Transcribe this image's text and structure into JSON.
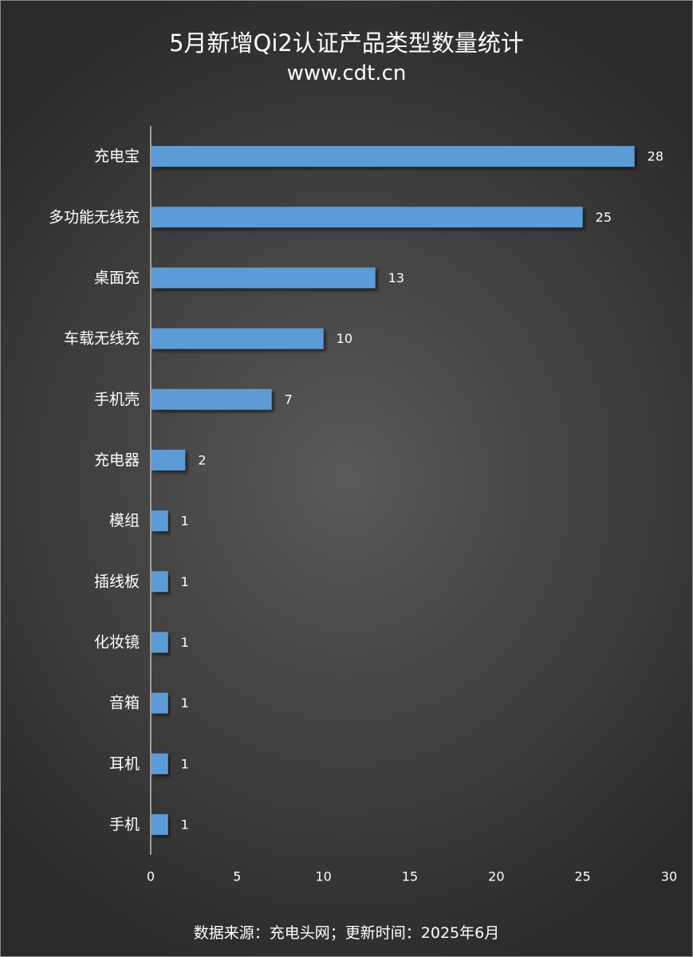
{
  "header": {
    "title": "5月新增Qi2认证产品类型数量统计",
    "subtitle": "www.cdt.cn"
  },
  "footer": {
    "source": "数据来源：充电头网；更新时间：2025年6月"
  },
  "chart_data": {
    "type": "bar",
    "orientation": "horizontal",
    "categories": [
      "充电宝",
      "多功能无线充",
      "桌面充",
      "车载无线充",
      "手机壳",
      "充电器",
      "模组",
      "插线板",
      "化妆镜",
      "音箱",
      "耳机",
      "手机"
    ],
    "values": [
      28,
      25,
      13,
      10,
      7,
      2,
      1,
      1,
      1,
      1,
      1,
      1
    ],
    "xlim": [
      0,
      30
    ],
    "xticks": [
      0,
      5,
      10,
      15,
      20,
      25,
      30
    ],
    "bar_color": "#5b9bd5",
    "grid": false,
    "legend": "none"
  }
}
